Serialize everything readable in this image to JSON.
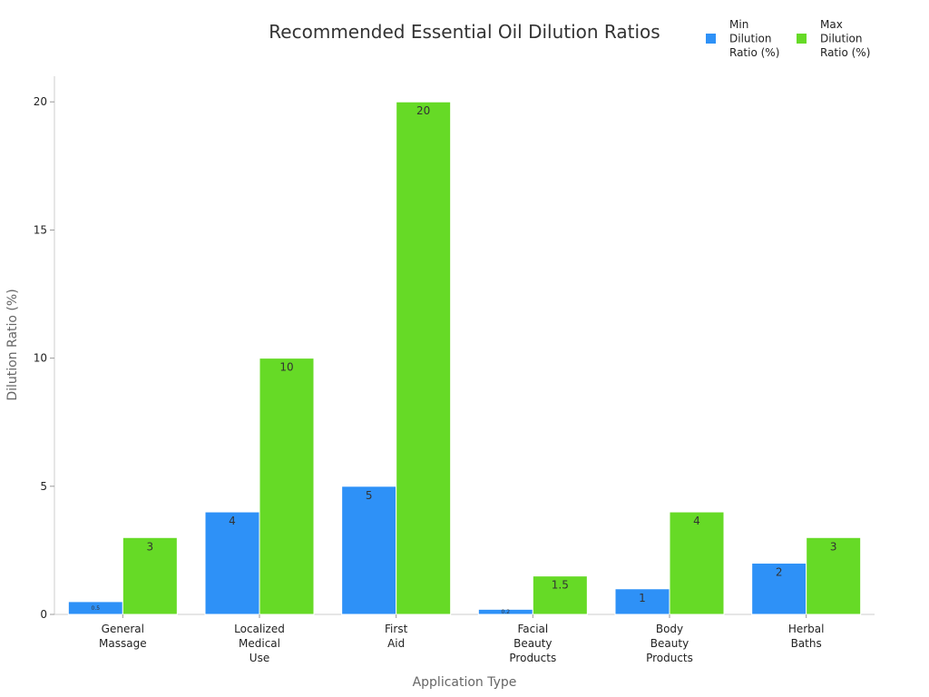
{
  "chart_data": {
    "type": "bar",
    "title": "Recommended Essential Oil Dilution Ratios",
    "xlabel": "Application Type",
    "ylabel": "Dilution Ratio (%)",
    "ylim": [
      0,
      21
    ],
    "yticks": [
      0,
      5,
      10,
      15,
      20
    ],
    "grid": false,
    "legend_position": "top-right",
    "categories": [
      [
        "General",
        "Massage"
      ],
      [
        "Localized",
        "Medical",
        "Use"
      ],
      [
        "First",
        "Aid"
      ],
      [
        "Facial",
        "Beauty",
        "Products"
      ],
      [
        "Body",
        "Beauty",
        "Products"
      ],
      [
        "Herbal",
        "Baths"
      ]
    ],
    "series": [
      {
        "name": [
          "Min",
          "Dilution",
          "Ratio (%)"
        ],
        "color": "#2e91f7",
        "values": [
          0.5,
          4,
          5,
          0.2,
          1,
          2
        ]
      },
      {
        "name": [
          "Max",
          "Dilution",
          "Ratio (%)"
        ],
        "color": "#66da26",
        "values": [
          3,
          10,
          20,
          1.5,
          4,
          3
        ]
      }
    ]
  }
}
